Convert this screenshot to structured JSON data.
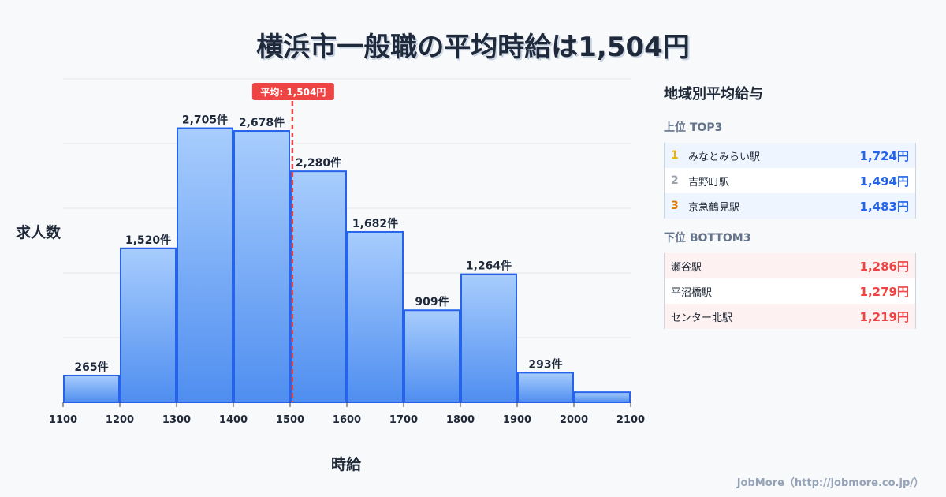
{
  "chart_data": {
    "type": "bar",
    "title": "横浜市一般職の平均時給は1,504円",
    "xlabel": "時給",
    "ylabel": "求人数",
    "bin_edges": [
      1100,
      1200,
      1300,
      1400,
      1500,
      1600,
      1700,
      1800,
      1900,
      2000,
      2100
    ],
    "values": [
      265,
      1520,
      2705,
      2678,
      2280,
      1682,
      909,
      1264,
      293,
      100
    ],
    "data_labels": [
      "265件",
      "1,520件",
      "2,705件",
      "2,678件",
      "2,280件",
      "1,682件",
      "909件",
      "1,264件",
      "293件",
      ""
    ],
    "xlim": [
      1100,
      2100
    ],
    "ylim": [
      0,
      3192
    ],
    "grid": true,
    "mean": {
      "value": 1504,
      "label": "平均: 1,504円"
    }
  },
  "panel": {
    "title": "地域別平均給与",
    "top_label": "上位 TOP3",
    "top": [
      {
        "rank": "1",
        "name": "みなとみらい駅",
        "value": "1,724円",
        "color": "#eab308"
      },
      {
        "rank": "2",
        "name": "吉野町駅",
        "value": "1,494円",
        "color": "#9ca3af"
      },
      {
        "rank": "3",
        "name": "京急鶴見駅",
        "value": "1,483円",
        "color": "#d97706"
      }
    ],
    "bottom_label": "下位 BOTTOM3",
    "bottom": [
      {
        "name": "瀬谷駅",
        "value": "1,286円"
      },
      {
        "name": "平沼橋駅",
        "value": "1,279円"
      },
      {
        "name": "センター北駅",
        "value": "1,219円"
      }
    ]
  },
  "footer": "JobMore（http://jobmore.co.jp/）"
}
